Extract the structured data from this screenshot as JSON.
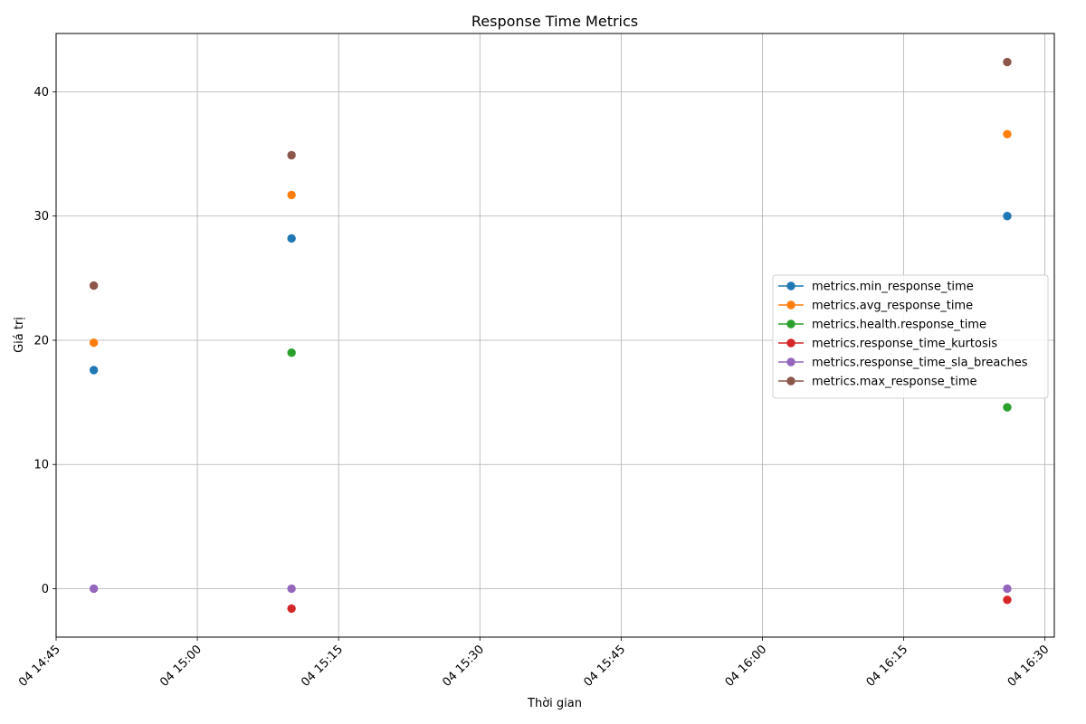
{
  "chart_data": {
    "type": "line",
    "title": "Response Time Metrics",
    "xlabel": "Thời gian",
    "ylabel": "Giá trị",
    "x": [
      "2024-01-04 14:49",
      "2024-01-04 15:10",
      "2024-01-04 16:26"
    ],
    "xticks": [
      {
        "value": "2024-01-04 14:45",
        "label": "04 14:45"
      },
      {
        "value": "2024-01-04 15:00",
        "label": "04 15:00"
      },
      {
        "value": "2024-01-04 15:15",
        "label": "04 15:15"
      },
      {
        "value": "2024-01-04 15:30",
        "label": "04 15:30"
      },
      {
        "value": "2024-01-04 15:45",
        "label": "04 15:45"
      },
      {
        "value": "2024-01-04 16:00",
        "label": "04 16:00"
      },
      {
        "value": "2024-01-04 16:15",
        "label": "04 16:15"
      },
      {
        "value": "2024-01-04 16:30",
        "label": "04 16:30"
      }
    ],
    "xlim": [
      "2024-01-04 14:45",
      "2024-01-04 16:31"
    ],
    "yticks": [
      0,
      10,
      20,
      30,
      40
    ],
    "ylim": [
      -3.9,
      44.7
    ],
    "grid": true,
    "legend_position": "center-right",
    "series": [
      {
        "name": "metrics.min_response_time",
        "color": "#1f77b4",
        "values": [
          17.6,
          28.2,
          30.0
        ]
      },
      {
        "name": "metrics.avg_response_time",
        "color": "#ff7f0e",
        "values": [
          19.8,
          31.7,
          36.6
        ]
      },
      {
        "name": "metrics.health.response_time",
        "color": "#2ca02c",
        "values": [
          null,
          19.0,
          14.6
        ]
      },
      {
        "name": "metrics.response_time_kurtosis",
        "color": "#d62728",
        "values": [
          null,
          -1.6,
          -0.9
        ]
      },
      {
        "name": "metrics.response_time_sla_breaches",
        "color": "#9467bd",
        "values": [
          0,
          0,
          0
        ]
      },
      {
        "name": "metrics.max_response_time",
        "color": "#8c564b",
        "values": [
          24.4,
          34.9,
          42.4
        ]
      }
    ]
  }
}
